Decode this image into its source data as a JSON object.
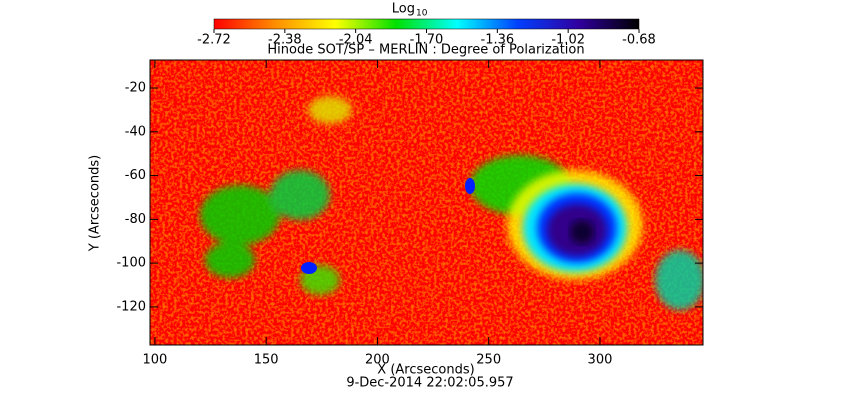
{
  "chart_data": {
    "type": "image",
    "title": "Hinode SOT/SP – MERLIN : Degree of Polarization",
    "subtitle": "9-Dec-2014 22:02:05.957",
    "x_label": "X (Arcseconds)",
    "y_label": "Y (Arcseconds)",
    "xlim": [
      97.8,
      346.3
    ],
    "xticks": [
      100,
      150,
      200,
      250,
      300
    ],
    "ylim": [
      -137.4,
      -7.2
    ],
    "yticks": [
      -120,
      -100,
      -80,
      -60,
      -40,
      -20
    ],
    "colorbar": {
      "label": "Log",
      "label_subscript": "10",
      "lim": [
        -2.72,
        -0.68
      ],
      "ticks": [
        -2.72,
        -2.38,
        -2.04,
        {
          "value": -1.7,
          "label": "-1.70"
        },
        -1.36,
        -1.02,
        -0.68
      ],
      "colors": [
        "#ff0000",
        "#ff8c00",
        "#ffff00",
        "#00e000",
        "#00ffff",
        "#0040ff",
        "#3000a0",
        "#000000"
      ]
    }
  }
}
